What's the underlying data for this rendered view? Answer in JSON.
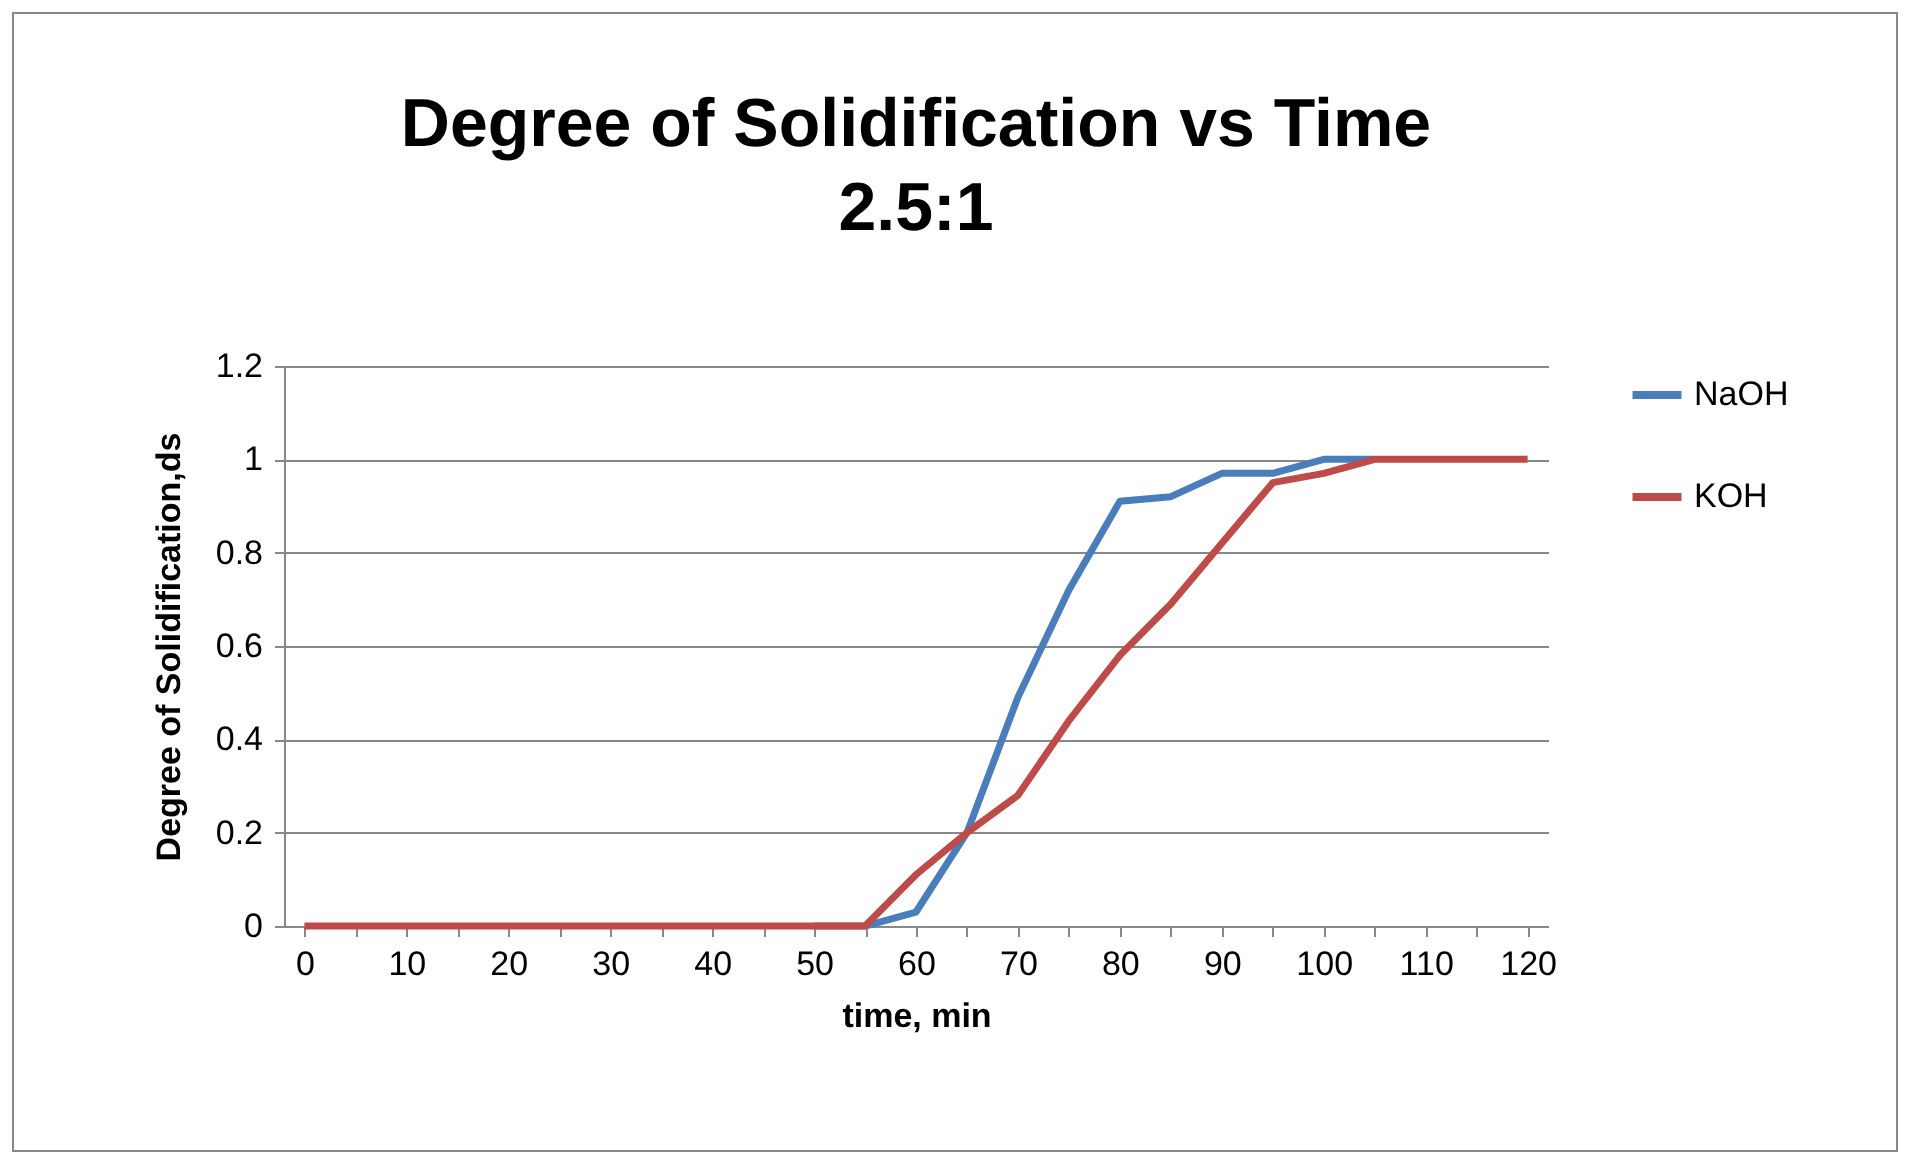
{
  "chart_data": {
    "type": "line",
    "title": "Degree of Solidification vs Time",
    "subtitle": "2.5:1",
    "xlabel": "time, min",
    "ylabel": "Degree of Solidification,ds",
    "categories": [
      "0",
      null,
      "10",
      null,
      "20",
      null,
      "30",
      null,
      "40",
      null,
      "50",
      null,
      "60",
      null,
      "70",
      null,
      "80",
      null,
      "90",
      null,
      "100",
      null,
      "110",
      null,
      "120"
    ],
    "series": [
      {
        "name": "NaOH",
        "color": "#4a7ebb",
        "values": [
          null,
          null,
          null,
          null,
          null,
          null,
          null,
          null,
          null,
          null,
          0,
          0,
          0.03,
          0.2,
          0.49,
          0.72,
          0.91,
          0.92,
          0.97,
          0.97,
          1.0,
          1.0,
          null,
          null,
          null
        ]
      },
      {
        "name": "KOH",
        "color": "#be4b48",
        "values": [
          0,
          0,
          0,
          0,
          0,
          0,
          0,
          0,
          0,
          0,
          0,
          0,
          0.11,
          0.2,
          0.28,
          0.44,
          0.58,
          0.69,
          0.82,
          0.95,
          0.97,
          1.0,
          1.0,
          1.0,
          1.0
        ]
      }
    ],
    "ylim": [
      0,
      1.2
    ],
    "yticks": [
      0,
      0.2,
      0.4,
      0.6,
      0.8,
      1,
      1.2
    ],
    "grid": "y",
    "legend": "right",
    "marker": "none",
    "line_style": "solid"
  }
}
